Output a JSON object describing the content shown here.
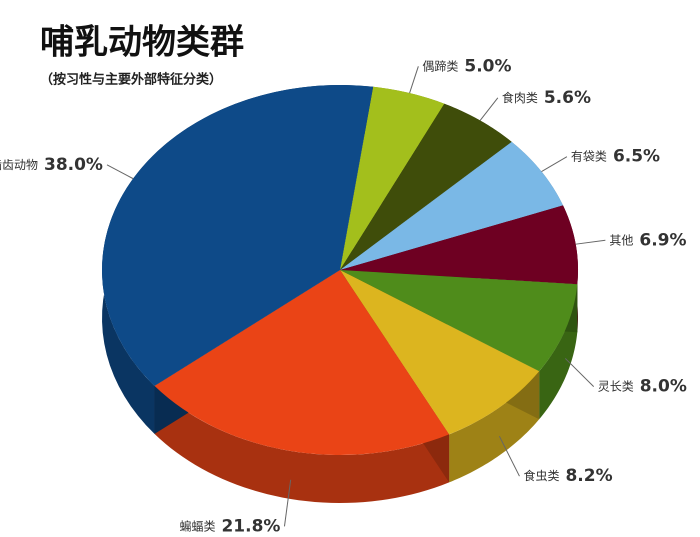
{
  "chart_data": {
    "type": "pie",
    "title": "哺乳动物类群",
    "subtitle": "（按习性与主要外部特征分类）",
    "categories": [
      "偶蹄类",
      "食肉类",
      "有袋类",
      "其他",
      "灵长类",
      "食虫类",
      "蝙蝠类",
      "啮齿动物"
    ],
    "values": [
      5.0,
      5.6,
      6.5,
      6.9,
      8.0,
      8.2,
      21.8,
      38.0
    ],
    "value_labels": [
      "5.0%",
      "5.6%",
      "6.5%",
      "6.9%",
      "8.0%",
      "8.2%",
      "21.8%",
      "38.0%"
    ],
    "colors": [
      "#a3bf1c",
      "#3f4d0a",
      "#7ab8e6",
      "#6e0022",
      "#4f8c1b",
      "#dcb51f",
      "#ea4416",
      "#0e4a88"
    ]
  }
}
